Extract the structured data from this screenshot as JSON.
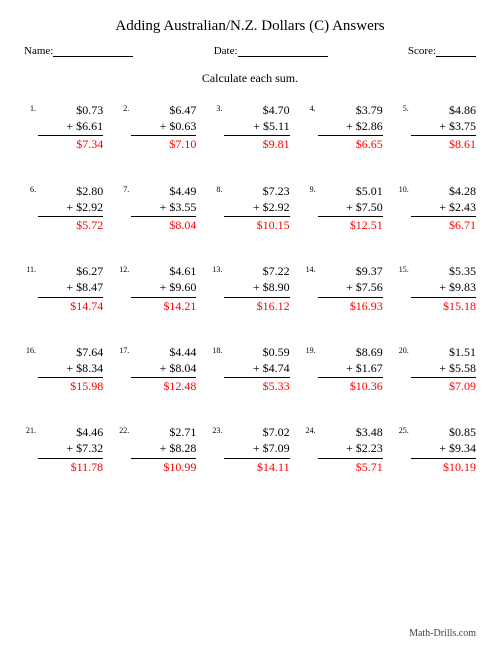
{
  "title": "Adding Australian/N.Z. Dollars (C) Answers",
  "meta": {
    "name_label": "Name:",
    "date_label": "Date:",
    "score_label": "Score:"
  },
  "instruction": "Calculate each sum.",
  "footer": "Math-Drills.com",
  "colors": {
    "answer": "#ff0000",
    "text": "#000000",
    "bg": "#ffffff"
  },
  "problems": [
    {
      "n": "1.",
      "a": "$0.73",
      "b": "+ $6.61",
      "ans": "$7.34"
    },
    {
      "n": "2.",
      "a": "$6.47",
      "b": "+ $0.63",
      "ans": "$7.10"
    },
    {
      "n": "3.",
      "a": "$4.70",
      "b": "+ $5.11",
      "ans": "$9.81"
    },
    {
      "n": "4.",
      "a": "$3.79",
      "b": "+ $2.86",
      "ans": "$6.65"
    },
    {
      "n": "5.",
      "a": "$4.86",
      "b": "+ $3.75",
      "ans": "$8.61"
    },
    {
      "n": "6.",
      "a": "$2.80",
      "b": "+ $2.92",
      "ans": "$5.72"
    },
    {
      "n": "7.",
      "a": "$4.49",
      "b": "+ $3.55",
      "ans": "$8.04"
    },
    {
      "n": "8.",
      "a": "$7.23",
      "b": "+ $2.92",
      "ans": "$10.15"
    },
    {
      "n": "9.",
      "a": "$5.01",
      "b": "+ $7.50",
      "ans": "$12.51"
    },
    {
      "n": "10.",
      "a": "$4.28",
      "b": "+ $2.43",
      "ans": "$6.71"
    },
    {
      "n": "11.",
      "a": "$6.27",
      "b": "+ $8.47",
      "ans": "$14.74"
    },
    {
      "n": "12.",
      "a": "$4.61",
      "b": "+ $9.60",
      "ans": "$14.21"
    },
    {
      "n": "13.",
      "a": "$7.22",
      "b": "+ $8.90",
      "ans": "$16.12"
    },
    {
      "n": "14.",
      "a": "$9.37",
      "b": "+ $7.56",
      "ans": "$16.93"
    },
    {
      "n": "15.",
      "a": "$5.35",
      "b": "+ $9.83",
      "ans": "$15.18"
    },
    {
      "n": "16.",
      "a": "$7.64",
      "b": "+ $8.34",
      "ans": "$15.98"
    },
    {
      "n": "17.",
      "a": "$4.44",
      "b": "+ $8.04",
      "ans": "$12.48"
    },
    {
      "n": "18.",
      "a": "$0.59",
      "b": "+ $4.74",
      "ans": "$5.33"
    },
    {
      "n": "19.",
      "a": "$8.69",
      "b": "+ $1.67",
      "ans": "$10.36"
    },
    {
      "n": "20.",
      "a": "$1.51",
      "b": "+ $5.58",
      "ans": "$7.09"
    },
    {
      "n": "21.",
      "a": "$4.46",
      "b": "+ $7.32",
      "ans": "$11.78"
    },
    {
      "n": "22.",
      "a": "$2.71",
      "b": "+ $8.28",
      "ans": "$10.99"
    },
    {
      "n": "23.",
      "a": "$7.02",
      "b": "+ $7.09",
      "ans": "$14.11"
    },
    {
      "n": "24.",
      "a": "$3.48",
      "b": "+ $2.23",
      "ans": "$5.71"
    },
    {
      "n": "25.",
      "a": "$0.85",
      "b": "+ $9.34",
      "ans": "$10.19"
    }
  ]
}
